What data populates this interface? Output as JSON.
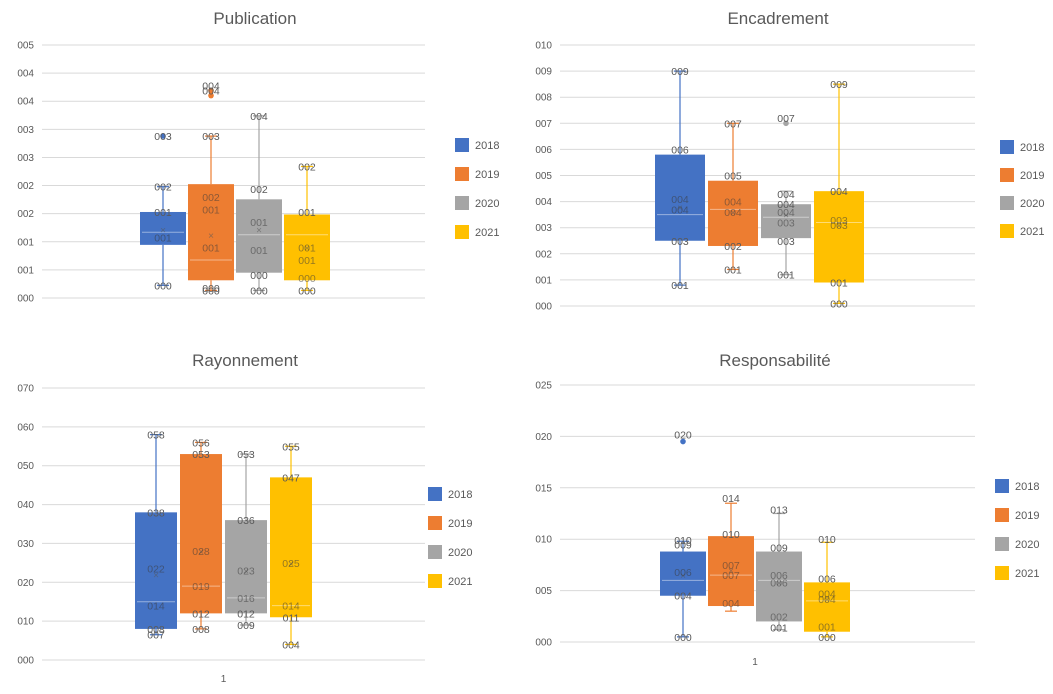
{
  "series_colors": {
    "2018": "#4472C4",
    "2019": "#ED7D31",
    "2020": "#A5A5A5",
    "2021": "#FFC000"
  },
  "chart_data": [
    {
      "type": "boxplot",
      "title": "Publication",
      "ylim": [
        0,
        5
      ],
      "yticks": [
        "000",
        "001",
        "001",
        "002",
        "002",
        "003",
        "003",
        "004",
        "004",
        "005"
      ],
      "category_label": "",
      "legend": [
        "2018",
        "2019",
        "2020",
        "2021"
      ],
      "legend_position": "right",
      "series": [
        {
          "name": "2018",
          "min": 0.25,
          "q1": 1.05,
          "median": 1.3,
          "mean": 1.35,
          "q3": 1.7,
          "max": 2.2,
          "outliers": [
            3.2
          ],
          "labels": [
            {
              "v": 3.2,
              "t": "003"
            },
            {
              "v": 2.2,
              "t": "002"
            },
            {
              "v": 1.7,
              "t": "001"
            },
            {
              "v": 1.2,
              "t": "001"
            },
            {
              "v": 0.25,
              "t": "000"
            }
          ]
        },
        {
          "name": "2019",
          "min": 0.15,
          "q1": 0.35,
          "median": 0.75,
          "mean": 1.25,
          "q3": 2.25,
          "max": 3.2,
          "outliers": [
            4.0,
            4.1
          ],
          "labels": [
            {
              "v": 4.2,
              "t": "004"
            },
            {
              "v": 4.1,
              "t": "004"
            },
            {
              "v": 3.2,
              "t": "003"
            },
            {
              "v": 2.0,
              "t": "002"
            },
            {
              "v": 1.75,
              "t": "001"
            },
            {
              "v": 1.0,
              "t": "001"
            },
            {
              "v": 0.2,
              "t": "000"
            },
            {
              "v": 0.15,
              "t": "000"
            }
          ]
        },
        {
          "name": "2020",
          "min": 0.15,
          "q1": 0.5,
          "median": 1.25,
          "mean": 1.35,
          "q3": 1.95,
          "max": 3.6,
          "outliers": [],
          "labels": [
            {
              "v": 3.6,
              "t": "004"
            },
            {
              "v": 2.15,
              "t": "002"
            },
            {
              "v": 1.5,
              "t": "001"
            },
            {
              "v": 0.95,
              "t": "001"
            },
            {
              "v": 0.45,
              "t": "000"
            },
            {
              "v": 0.15,
              "t": "000"
            }
          ]
        },
        {
          "name": "2021",
          "min": 0.15,
          "q1": 0.35,
          "median": 1.25,
          "mean": 1.0,
          "q3": 1.65,
          "max": 2.6,
          "outliers": [],
          "labels": [
            {
              "v": 2.6,
              "t": "002"
            },
            {
              "v": 1.7,
              "t": "001"
            },
            {
              "v": 1.0,
              "t": "001"
            },
            {
              "v": 0.75,
              "t": "001"
            },
            {
              "v": 0.4,
              "t": "000"
            },
            {
              "v": 0.15,
              "t": "000"
            }
          ]
        }
      ]
    },
    {
      "type": "boxplot",
      "title": "Encadrement",
      "ylim": [
        0,
        10
      ],
      "yticks": [
        "000",
        "001",
        "002",
        "003",
        "004",
        "005",
        "006",
        "007",
        "008",
        "009",
        "010"
      ],
      "category_label": "",
      "legend": [
        "2018",
        "2019",
        "2020",
        "2021"
      ],
      "legend_position": "right",
      "series": [
        {
          "name": "2018",
          "min": 0.8,
          "q1": 2.5,
          "median": 3.5,
          "mean": 3.8,
          "q3": 5.8,
          "max": 9.0,
          "outliers": [],
          "labels": [
            {
              "v": 9.0,
              "t": "009"
            },
            {
              "v": 6.0,
              "t": "006"
            },
            {
              "v": 4.1,
              "t": "004"
            },
            {
              "v": 3.7,
              "t": "004"
            },
            {
              "v": 2.5,
              "t": "003"
            },
            {
              "v": 0.8,
              "t": "001"
            }
          ]
        },
        {
          "name": "2019",
          "min": 1.4,
          "q1": 2.3,
          "median": 3.7,
          "mean": 3.6,
          "q3": 4.8,
          "max": 7.0,
          "outliers": [],
          "labels": [
            {
              "v": 7.0,
              "t": "007"
            },
            {
              "v": 5.0,
              "t": "005"
            },
            {
              "v": 4.0,
              "t": "004"
            },
            {
              "v": 3.6,
              "t": "004"
            },
            {
              "v": 2.3,
              "t": "002"
            },
            {
              "v": 1.4,
              "t": "001"
            }
          ]
        },
        {
          "name": "2020",
          "min": 1.2,
          "q1": 2.6,
          "median": 3.4,
          "mean": 3.5,
          "q3": 3.9,
          "max": 4.4,
          "outliers": [
            7.0
          ],
          "labels": [
            {
              "v": 7.2,
              "t": "007"
            },
            {
              "v": 4.3,
              "t": "004"
            },
            {
              "v": 3.9,
              "t": "004"
            },
            {
              "v": 3.6,
              "t": "004"
            },
            {
              "v": 3.2,
              "t": "003"
            },
            {
              "v": 2.5,
              "t": "003"
            },
            {
              "v": 1.2,
              "t": "001"
            }
          ]
        },
        {
          "name": "2021",
          "min": 0.1,
          "q1": 0.9,
          "median": 3.2,
          "mean": 3.1,
          "q3": 4.4,
          "max": 8.5,
          "outliers": [],
          "labels": [
            {
              "v": 8.5,
              "t": "009"
            },
            {
              "v": 4.4,
              "t": "004"
            },
            {
              "v": 3.3,
              "t": "003"
            },
            {
              "v": 3.1,
              "t": "003"
            },
            {
              "v": 0.9,
              "t": "001"
            },
            {
              "v": 0.1,
              "t": "000"
            }
          ]
        }
      ]
    },
    {
      "type": "boxplot",
      "title": "Rayonnement",
      "ylim": [
        0,
        70
      ],
      "yticks": [
        "000",
        "010",
        "020",
        "030",
        "040",
        "050",
        "060",
        "070"
      ],
      "category_label": "1",
      "legend": [
        "2018",
        "2019",
        "2020",
        "2021"
      ],
      "legend_position": "right",
      "series": [
        {
          "name": "2018",
          "min": 6.5,
          "q1": 8.0,
          "median": 15.0,
          "mean": 22.0,
          "q3": 38.0,
          "max": 58.0,
          "outliers": [],
          "labels": [
            {
              "v": 58.0,
              "t": "058"
            },
            {
              "v": 38.0,
              "t": "038"
            },
            {
              "v": 23.5,
              "t": "022"
            },
            {
              "v": 14.0,
              "t": "014"
            },
            {
              "v": 8.0,
              "t": "008"
            },
            {
              "v": 6.5,
              "t": "007"
            }
          ]
        },
        {
          "name": "2019",
          "min": 8.0,
          "q1": 12.0,
          "median": 19.0,
          "mean": 28.0,
          "q3": 53.0,
          "max": 56.0,
          "outliers": [],
          "labels": [
            {
              "v": 56.0,
              "t": "056"
            },
            {
              "v": 53.0,
              "t": "053"
            },
            {
              "v": 28.0,
              "t": "028"
            },
            {
              "v": 19.0,
              "t": "019"
            },
            {
              "v": 12.0,
              "t": "012"
            },
            {
              "v": 8.0,
              "t": "008"
            }
          ]
        },
        {
          "name": "2020",
          "min": 9.0,
          "q1": 12.0,
          "median": 16.0,
          "mean": 23.0,
          "q3": 36.0,
          "max": 53.0,
          "outliers": [],
          "labels": [
            {
              "v": 53.0,
              "t": "053"
            },
            {
              "v": 36.0,
              "t": "036"
            },
            {
              "v": 23.0,
              "t": "023"
            },
            {
              "v": 16.0,
              "t": "016"
            },
            {
              "v": 12.0,
              "t": "012"
            },
            {
              "v": 9.0,
              "t": "009"
            }
          ]
        },
        {
          "name": "2021",
          "min": 4.0,
          "q1": 11.0,
          "median": 14.0,
          "mean": 25.0,
          "q3": 47.0,
          "max": 55.0,
          "outliers": [],
          "labels": [
            {
              "v": 55.0,
              "t": "055"
            },
            {
              "v": 47.0,
              "t": "047"
            },
            {
              "v": 25.0,
              "t": "025"
            },
            {
              "v": 14.0,
              "t": "014"
            },
            {
              "v": 11.0,
              "t": "011"
            },
            {
              "v": 4.0,
              "t": "004"
            }
          ]
        }
      ]
    },
    {
      "type": "boxplot",
      "title": "Responsabilité",
      "ylim": [
        0,
        25
      ],
      "yticks": [
        "000",
        "005",
        "010",
        "015",
        "020",
        "025"
      ],
      "category_label": "1",
      "legend": [
        "2018",
        "2019",
        "2020",
        "2021"
      ],
      "legend_position": "right",
      "series": [
        {
          "name": "2018",
          "min": 0.5,
          "q1": 4.5,
          "median": 6.0,
          "mean": 6.5,
          "q3": 8.8,
          "max": 9.8,
          "outliers": [
            19.5
          ],
          "labels": [
            {
              "v": 20.2,
              "t": "020"
            },
            {
              "v": 9.9,
              "t": "010"
            },
            {
              "v": 9.5,
              "t": "009"
            },
            {
              "v": 6.8,
              "t": "006"
            },
            {
              "v": 4.5,
              "t": "004"
            },
            {
              "v": 0.5,
              "t": "000"
            }
          ]
        },
        {
          "name": "2019",
          "min": 3.0,
          "q1": 3.5,
          "median": 6.5,
          "mean": 7.0,
          "q3": 10.3,
          "max": 13.5,
          "outliers": [],
          "labels": [
            {
              "v": 14.0,
              "t": "014"
            },
            {
              "v": 10.5,
              "t": "010"
            },
            {
              "v": 7.5,
              "t": "007"
            },
            {
              "v": 6.5,
              "t": "007"
            },
            {
              "v": 3.8,
              "t": "004"
            }
          ]
        },
        {
          "name": "2020",
          "min": 1.2,
          "q1": 2.0,
          "median": 6.0,
          "mean": 5.8,
          "q3": 8.8,
          "max": 12.5,
          "outliers": [],
          "labels": [
            {
              "v": 12.9,
              "t": "013"
            },
            {
              "v": 9.2,
              "t": "009"
            },
            {
              "v": 6.5,
              "t": "006"
            },
            {
              "v": 5.8,
              "t": "006"
            },
            {
              "v": 2.5,
              "t": "002"
            },
            {
              "v": 1.4,
              "t": "001"
            }
          ]
        },
        {
          "name": "2021",
          "min": 0.5,
          "q1": 1.0,
          "median": 4.0,
          "mean": 4.2,
          "q3": 5.8,
          "max": 9.7,
          "outliers": [],
          "labels": [
            {
              "v": 10.0,
              "t": "010"
            },
            {
              "v": 6.2,
              "t": "006"
            },
            {
              "v": 4.7,
              "t": "004"
            },
            {
              "v": 4.2,
              "t": "004"
            },
            {
              "v": 1.5,
              "t": "001"
            },
            {
              "v": 0.5,
              "t": "000"
            }
          ]
        }
      ]
    }
  ]
}
